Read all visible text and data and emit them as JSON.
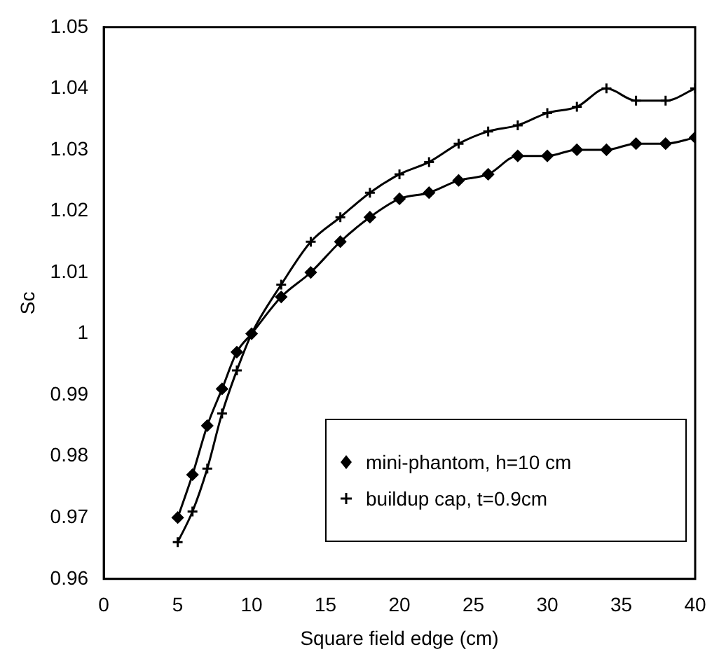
{
  "chart_data": {
    "type": "line",
    "xlabel": "Square field edge (cm)",
    "ylabel": "Sc",
    "xlim": [
      0,
      40
    ],
    "xticks": [
      0,
      5,
      10,
      15,
      20,
      25,
      30,
      35,
      40
    ],
    "ylim": [
      0.96,
      1.05
    ],
    "yticks": [
      0.96,
      0.97,
      0.98,
      0.99,
      1,
      1.01,
      1.02,
      1.03,
      1.04,
      1.05
    ],
    "grid": false,
    "legend": "bottom right",
    "line_style": "solid",
    "series": [
      {
        "name": "mini-phantom, h=10 cm",
        "color": "#000000",
        "marker": "diamond",
        "x": [
          5,
          6,
          7,
          8,
          9,
          10,
          12,
          14,
          16,
          18,
          20,
          22,
          24,
          26,
          28,
          30,
          32,
          34,
          36,
          38,
          40
        ],
        "values": [
          0.97,
          0.977,
          0.985,
          0.991,
          0.997,
          1.0,
          1.006,
          1.01,
          1.015,
          1.019,
          1.022,
          1.023,
          1.025,
          1.026,
          1.029,
          1.029,
          1.03,
          1.03,
          1.031,
          1.031,
          1.032
        ]
      },
      {
        "name": "buildup cap, t=0.9cm",
        "color": "#000000",
        "marker": "cross",
        "x": [
          5,
          6,
          7,
          8,
          9,
          10,
          12,
          14,
          16,
          18,
          20,
          22,
          24,
          26,
          28,
          30,
          32,
          34,
          36,
          38,
          40
        ],
        "values": [
          0.966,
          0.971,
          0.978,
          0.987,
          0.994,
          1.0,
          1.008,
          1.015,
          1.019,
          1.023,
          1.026,
          1.028,
          1.031,
          1.033,
          1.034,
          1.036,
          1.037,
          1.04,
          1.038,
          1.038,
          1.04
        ]
      }
    ]
  }
}
